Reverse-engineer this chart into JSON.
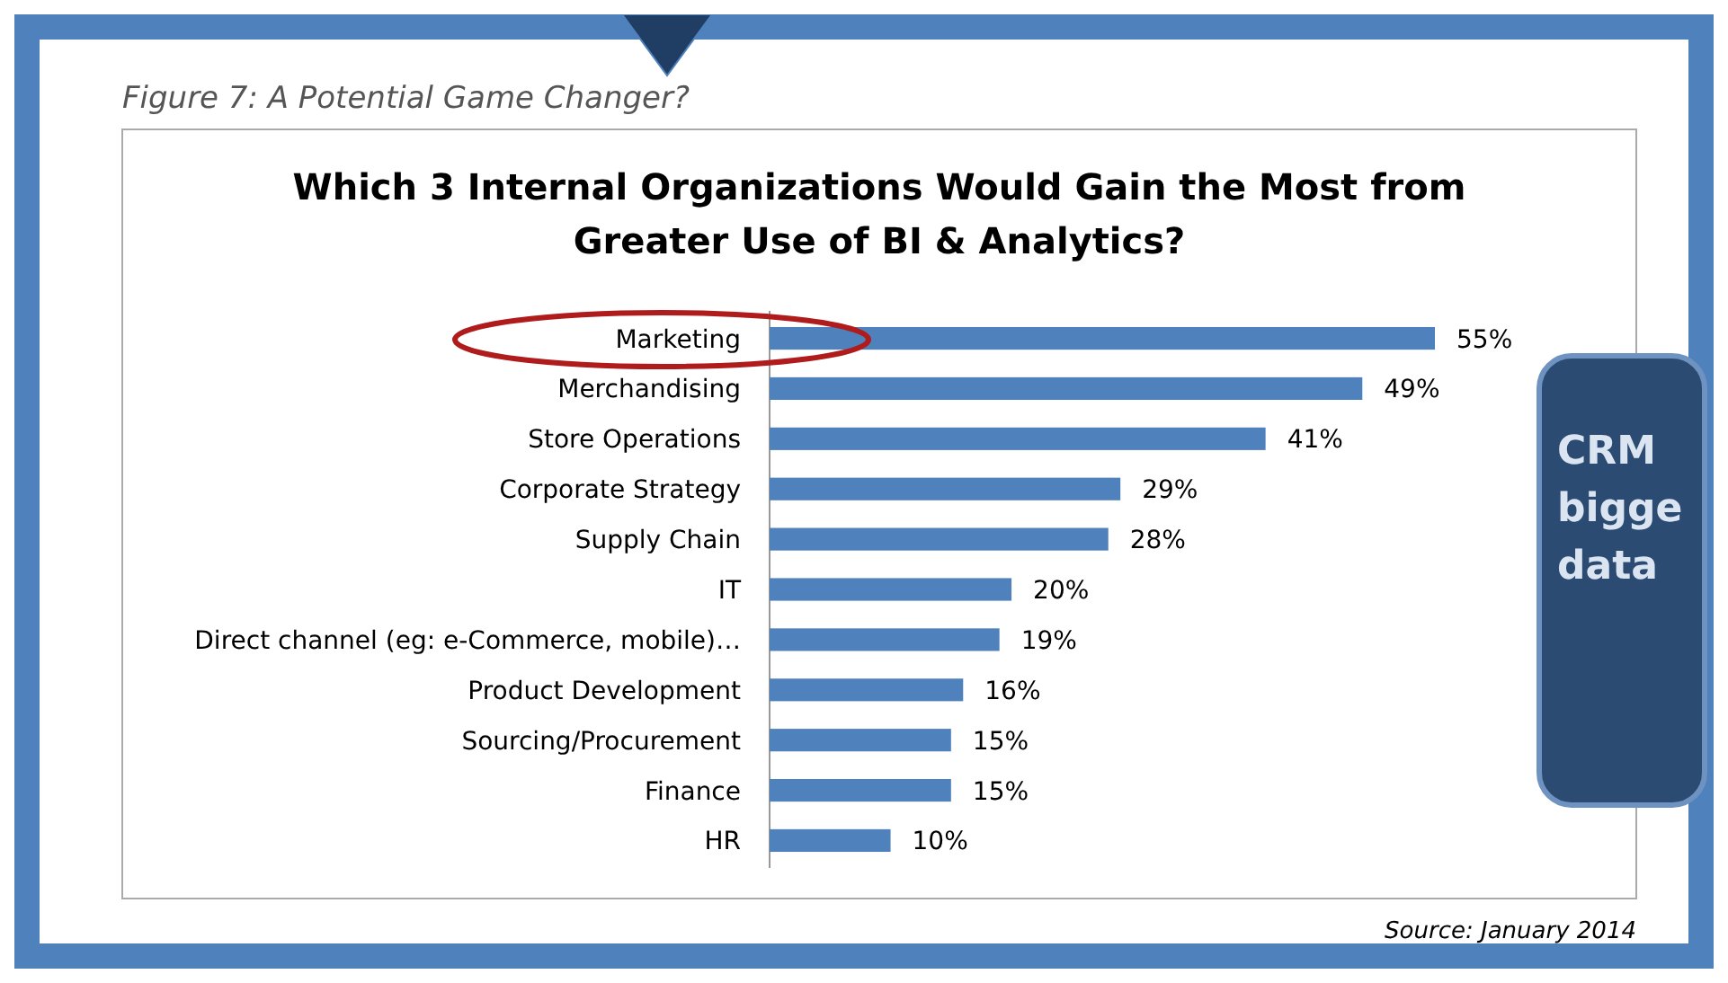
{
  "chart_data": {
    "type": "bar",
    "orientation": "horizontal",
    "title": "Figure 7: A Potential Game Changer?",
    "subtitle": "Which 3 Internal Organizations Would Gain the Most from Greater Use of BI & Analytics?",
    "categories": [
      "Marketing",
      "Merchandising",
      "Store Operations",
      "Corporate Strategy",
      "Supply Chain",
      "IT",
      "Direct channel (eg: e-Commerce, mobile)…",
      "Product Development",
      "Sourcing/Procurement",
      "Finance",
      "HR"
    ],
    "values": [
      55,
      49,
      41,
      29,
      28,
      20,
      19,
      16,
      15,
      15,
      10
    ],
    "value_labels": [
      "55%",
      "49%",
      "41%",
      "29%",
      "28%",
      "20%",
      "19%",
      "16%",
      "15%",
      "15%",
      "10%"
    ],
    "color": "#4f81bd",
    "annotations": [
      "Source: January 2014",
      "CRM bigge data"
    ]
  }
}
